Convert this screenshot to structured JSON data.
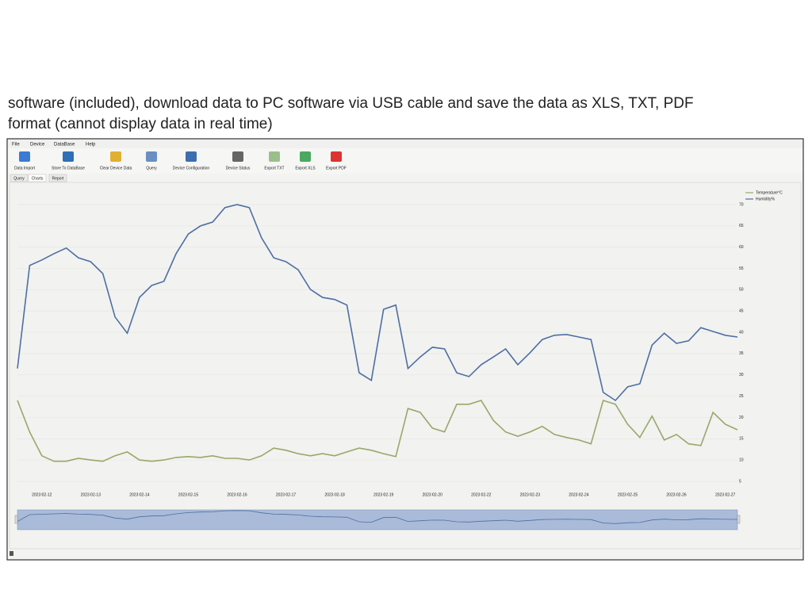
{
  "caption": {
    "lines": [
      "software (included), download data to PC software via USB cable and save the data as XLS, TXT, PDF",
      "format (cannot display data in real time)"
    ]
  },
  "menu": [
    "File",
    "Device",
    "DataBase",
    "Help"
  ],
  "toolbar": [
    "Data Import",
    "Store To DataBase",
    "Clear Device Data",
    "Query",
    "Device Configuration",
    "Device Status",
    "Export TXT",
    "Export XLS",
    "Export PDF"
  ],
  "tabs": [
    "Query",
    "Charts",
    "Report"
  ],
  "chart_data": {
    "type": "line",
    "categories": [
      null,
      null,
      "2023 02-12",
      null,
      null,
      null,
      "2023 02-13",
      null,
      null,
      null,
      "2023 02-14",
      null,
      null,
      null,
      "2023 02-15",
      null,
      null,
      null,
      "2023 02-16",
      null,
      null,
      null,
      "2023 02-17",
      null,
      null,
      null,
      "2023 02-18",
      null,
      null,
      null,
      "2023 02-19",
      null,
      null,
      null,
      "2023 02-20",
      null,
      null,
      null,
      "2023 02-22",
      null,
      null,
      null,
      "2023 02-23",
      null,
      null,
      null,
      "2023 02-24",
      null,
      null,
      null,
      "2023 02-25",
      null,
      null,
      null,
      "2023 02-26",
      null,
      null,
      null,
      "2023 02-27",
      null
    ],
    "series": [
      {
        "name": "Temperature°C",
        "color": "#98a86a",
        "values": [
          24,
          16.6,
          11,
          9.7,
          9.7,
          10.4,
          10,
          9.7,
          11,
          11.9,
          10,
          9.7,
          10,
          10.6,
          10.8,
          10.6,
          11,
          10.4,
          10.4,
          10,
          11,
          12.8,
          12.3,
          11.5,
          11,
          11.5,
          11,
          11.9,
          12.8,
          12.3,
          11.5,
          10.8,
          22.1,
          21.2,
          17.5,
          16.6,
          23.1,
          23.1,
          24,
          19.3,
          16.6,
          15.6,
          16.6,
          17.9,
          16,
          15.3,
          14.7,
          13.8,
          24,
          23.1,
          18.4,
          15.3,
          20.3,
          14.7,
          16,
          13.8,
          13.4,
          21.2,
          18.4,
          17.1
        ]
      },
      {
        "name": "Humidity%",
        "color": "#4d6fa3",
        "values": [
          31.5,
          55.7,
          57,
          58.5,
          59.8,
          57.5,
          56.6,
          53.8,
          43.6,
          39.8,
          48.2,
          51,
          52,
          58.5,
          63.1,
          65,
          65.9,
          69.3,
          70,
          69.3,
          62.2,
          57.5,
          56.6,
          54.7,
          50.1,
          48.2,
          47.7,
          46.4,
          30.5,
          28.7,
          45.4,
          46.4,
          31.5,
          34.2,
          36.5,
          36.1,
          30.5,
          29.6,
          32.4,
          34.2,
          36.1,
          32.4,
          35.2,
          38.3,
          39.3,
          39.5,
          38.9,
          38.3,
          25.9,
          24,
          27.2,
          27.9,
          37,
          39.8,
          37.4,
          38,
          41.1,
          40.2,
          39.3,
          38.9
        ]
      }
    ],
    "ylim": [
      2.5,
      72.5
    ],
    "yticks": [
      5,
      10,
      15,
      20,
      25,
      30,
      35,
      40,
      45,
      50,
      55,
      60,
      65,
      70
    ],
    "grid": true,
    "legend": "upper right"
  }
}
